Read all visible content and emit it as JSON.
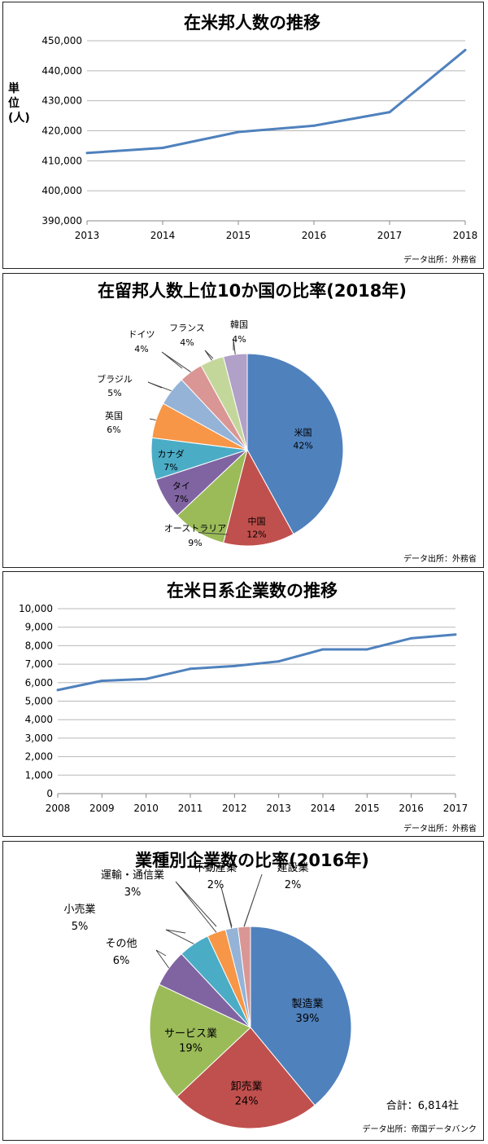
{
  "chart_data": [
    {
      "type": "line",
      "title": "在米邦人数の推移",
      "ylabel": "単位(人)",
      "x": [
        "2013",
        "2014",
        "2015",
        "2016",
        "2017",
        "2018"
      ],
      "series": [
        {
          "values": [
            412600,
            414300,
            419600,
            421700,
            426200,
            446900
          ]
        }
      ],
      "ylim": [
        390000,
        450000
      ],
      "yticks": [
        "390,000",
        "400,000",
        "410,000",
        "420,000",
        "430,000",
        "440,000",
        "450,000"
      ],
      "grid": true,
      "source": "データ出所：外務省",
      "color": "#4f81bd"
    },
    {
      "type": "pie",
      "title": "在留邦人数上位10か国の比率(2018年)",
      "slices": [
        {
          "label": "米国",
          "pct": "42%",
          "value": 42,
          "color": "#4f81bd"
        },
        {
          "label": "中国",
          "pct": "12%",
          "value": 12,
          "color": "#c0504d"
        },
        {
          "label": "オーストラリア",
          "pct": "9%",
          "value": 9,
          "color": "#9bbb59"
        },
        {
          "label": "タイ",
          "pct": "7%",
          "value": 7,
          "color": "#8064a2"
        },
        {
          "label": "カナダ",
          "pct": "7%",
          "value": 7,
          "color": "#4bacc6"
        },
        {
          "label": "英国",
          "pct": "6%",
          "value": 6,
          "color": "#f79646"
        },
        {
          "label": "ブラジル",
          "pct": "5%",
          "value": 5,
          "color": "#95b3d7"
        },
        {
          "label": "ドイツ",
          "pct": "4%",
          "value": 4,
          "color": "#da9694"
        },
        {
          "label": "フランス",
          "pct": "4%",
          "value": 4,
          "color": "#c4d79b"
        },
        {
          "label": "韓国",
          "pct": "4%",
          "value": 4,
          "color": "#b1a0c7"
        }
      ],
      "source": "データ出所：外務省"
    },
    {
      "type": "line",
      "title": "在米日系企業数の推移",
      "x": [
        "2008",
        "2009",
        "2010",
        "2011",
        "2012",
        "2013",
        "2014",
        "2015",
        "2016",
        "2017"
      ],
      "series": [
        {
          "values": [
            5600,
            6100,
            6200,
            6750,
            6900,
            7150,
            7800,
            7800,
            8400,
            8600
          ]
        }
      ],
      "ylim": [
        0,
        10000
      ],
      "yticks": [
        "0",
        "1,000",
        "2,000",
        "3,000",
        "4,000",
        "5,000",
        "6,000",
        "7,000",
        "8,000",
        "9,000",
        "10,000"
      ],
      "grid": true,
      "source": "データ出所：外務省",
      "color": "#4f81bd"
    },
    {
      "type": "pie",
      "title": "業種別企業数の比率(2016年)",
      "slices": [
        {
          "label": "製造業",
          "pct": "39%",
          "value": 39,
          "color": "#4f81bd"
        },
        {
          "label": "卸売業",
          "pct": "24%",
          "value": 24,
          "color": "#c0504d"
        },
        {
          "label": "サービス業",
          "pct": "19%",
          "value": 19,
          "color": "#9bbb59"
        },
        {
          "label": "その他",
          "pct": "6%",
          "value": 6,
          "color": "#8064a2"
        },
        {
          "label": "小売業",
          "pct": "5%",
          "value": 5,
          "color": "#4bacc6"
        },
        {
          "label": "運輸・通信業",
          "pct": "3%",
          "value": 3,
          "color": "#f79646"
        },
        {
          "label": "不動産業",
          "pct": "2%",
          "value": 2,
          "color": "#95b3d7"
        },
        {
          "label": "建設業",
          "pct": "2%",
          "value": 2,
          "color": "#da9694"
        }
      ],
      "total": "合計：6,814社",
      "source": "データ出所：帝国データバンク"
    }
  ]
}
